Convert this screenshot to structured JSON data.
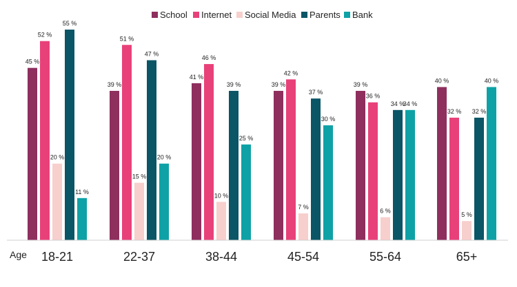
{
  "chart_data": {
    "type": "bar",
    "xlabel": "Age",
    "categories": [
      "18-21",
      "22-37",
      "38-44",
      "45-54",
      "55-64",
      "65+"
    ],
    "series": [
      {
        "name": "School",
        "color": "#8e2f5e",
        "values": [
          45,
          39,
          41,
          39,
          39,
          40
        ]
      },
      {
        "name": "Internet",
        "color": "#e8417a",
        "values": [
          52,
          51,
          46,
          42,
          36,
          32
        ]
      },
      {
        "name": "Social Media",
        "color": "#f7cfcc",
        "values": [
          20,
          15,
          10,
          7,
          6,
          5
        ]
      },
      {
        "name": "Parents",
        "color": "#0a5566",
        "values": [
          55,
          47,
          39,
          37,
          34,
          32
        ]
      },
      {
        "name": "Bank",
        "color": "#0ea2a6",
        "values": [
          11,
          20,
          25,
          30,
          34,
          40
        ]
      }
    ],
    "value_suffix": " %",
    "legend_position": "top-center",
    "ylim": [
      0,
      55
    ],
    "grid": false
  }
}
